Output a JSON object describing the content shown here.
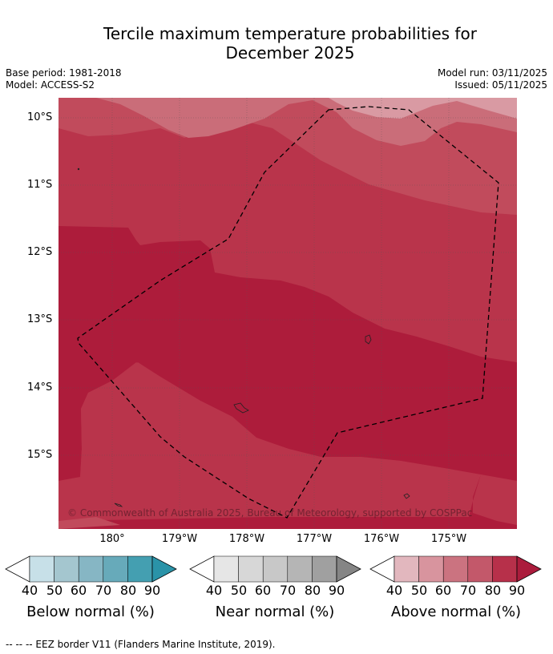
{
  "title_line1": "Tercile maximum temperature probabilities for",
  "title_line2": "December 2025",
  "meta_left": {
    "base_period": "Base period: 1981-2018",
    "model": "Model: ACCESS-S2"
  },
  "meta_right": {
    "model_run": "Model run: 03/11/2025",
    "issued": "Issued: 05/11/2025"
  },
  "map": {
    "lat_labels": [
      "10°S",
      "11°S",
      "12°S",
      "13°S",
      "14°S",
      "15°S"
    ],
    "lon_labels": [
      "180°",
      "179°W",
      "178°W",
      "177°W",
      "176°W",
      "175°W"
    ],
    "copyright": "© Commonwealth of Australia 2025, Bureau of Meteorology, supported by COSPPac",
    "colors": {
      "above_50": "#d99aa3",
      "above_60": "#ca6d79",
      "above_70": "#c14b5c",
      "above_80": "#b9344b",
      "above_90": "#ad1c3b"
    }
  },
  "colorbars": [
    {
      "label": "Below normal (%)",
      "ticks": [
        "40",
        "50",
        "60",
        "70",
        "80",
        "90"
      ],
      "colors": [
        "#ffffff",
        "#c7e0e8",
        "#a4c6cf",
        "#86b6c4",
        "#67aaba",
        "#449fb1",
        "#2a93a8"
      ]
    },
    {
      "label": "Near normal (%)",
      "ticks": [
        "40",
        "50",
        "60",
        "70",
        "80",
        "90"
      ],
      "colors": [
        "#ffffff",
        "#e6e6e6",
        "#d7d7d7",
        "#c8c8c8",
        "#b5b5b5",
        "#a0a0a0",
        "#858585"
      ]
    },
    {
      "label": "Above normal (%)",
      "ticks": [
        "40",
        "50",
        "60",
        "70",
        "80",
        "90"
      ],
      "colors": [
        "#ffffff",
        "#e2b7be",
        "#d8949e",
        "#cb7380",
        "#c3586a",
        "#b7304a",
        "#ab1c3c"
      ]
    }
  ],
  "footnote": "--  --  -- EEZ border V11 (Flanders Marine Institute, 2019)."
}
